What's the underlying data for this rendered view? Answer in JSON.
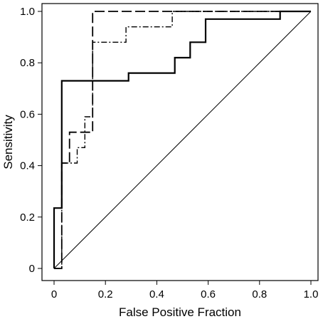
{
  "chart_data": {
    "type": "line",
    "title": "",
    "xlabel": "False Positive Fraction",
    "ylabel": "Sensitivity",
    "xlim": [
      0,
      1.0
    ],
    "ylim": [
      0,
      1.0
    ],
    "x_ticks": [
      0,
      0.2,
      0.4,
      0.6,
      0.8,
      1.0
    ],
    "x_tick_labels": [
      "0",
      "0.2",
      "0.4",
      "0.6",
      "0.8",
      "1.0"
    ],
    "y_ticks": [
      0,
      0.2,
      0.4,
      0.6,
      0.8,
      1.0
    ],
    "y_tick_labels": [
      "0",
      "0.2",
      "0.4",
      "0.6",
      "0.8",
      "1.0"
    ],
    "grid": false,
    "legend": "none",
    "series": [
      {
        "style": "solid",
        "color": "#000000",
        "x": [
          0,
          0,
          0.03,
          0.03,
          0.08,
          0.08,
          0.29,
          0.29,
          0.47,
          0.47,
          0.53,
          0.53,
          0.59,
          0.59,
          0.88,
          0.88,
          1.0
        ],
        "y": [
          0,
          0.235,
          0.235,
          0.73,
          0.73,
          0.73,
          0.73,
          0.76,
          0.76,
          0.82,
          0.82,
          0.88,
          0.88,
          0.97,
          0.97,
          1.0,
          1.0
        ]
      },
      {
        "style": "dashed",
        "color": "#000000",
        "x": [
          0,
          0.03,
          0.03,
          0.06,
          0.06,
          0.15,
          0.15,
          1.0
        ],
        "y": [
          0,
          0,
          0.41,
          0.41,
          0.53,
          0.53,
          1.0,
          1.0
        ]
      },
      {
        "style": "dash-dot",
        "color": "#000000",
        "x": [
          0,
          0.03,
          0.03,
          0.09,
          0.09,
          0.12,
          0.12,
          0.15,
          0.15,
          0.28,
          0.28,
          0.46,
          0.46,
          1.0
        ],
        "y": [
          0,
          0,
          0.41,
          0.41,
          0.47,
          0.47,
          0.59,
          0.59,
          0.88,
          0.88,
          0.94,
          0.94,
          1.0,
          1.0
        ]
      },
      {
        "style": "reference",
        "color": "#000000",
        "x": [
          0,
          1.0
        ],
        "y": [
          0,
          1.0
        ]
      }
    ]
  }
}
